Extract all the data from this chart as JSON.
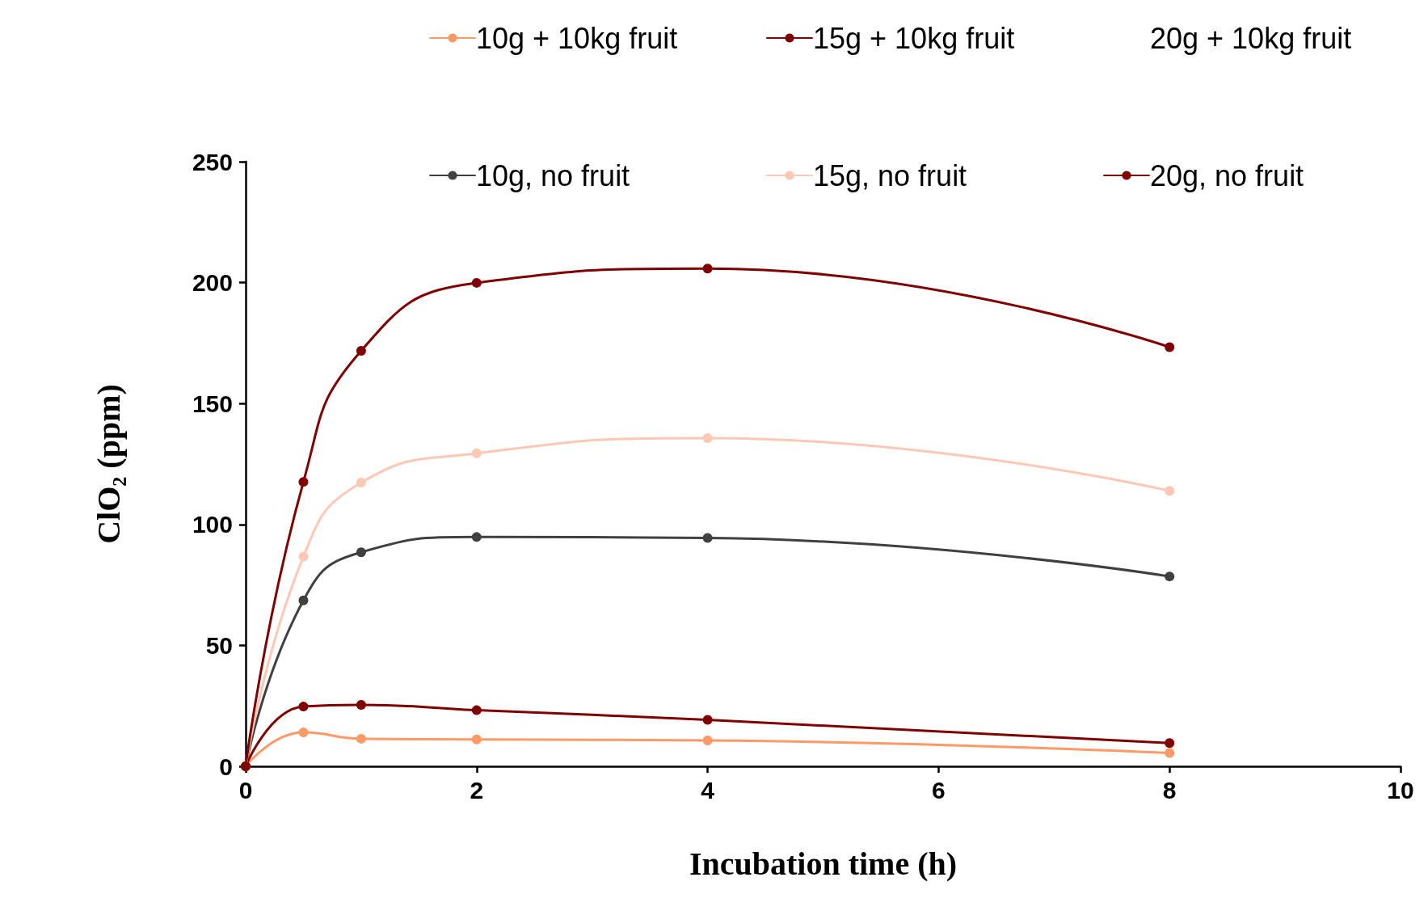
{
  "chart_data": {
    "type": "line",
    "xlabel": "Incubation time (h)",
    "ylabel": "ClO₂ (ppm)",
    "x": [
      0,
      0.5,
      1,
      2,
      4,
      8
    ],
    "series": [
      {
        "name": "10g + 10kg fruit",
        "color": "#ff9966",
        "values": [
          0,
          14,
          11.4,
          11.1,
          10.7,
          5.5
        ]
      },
      {
        "name": "15g + 10kg fruit",
        "color": "#800000",
        "values": [
          0,
          24.7,
          25.4,
          23.2,
          19.2,
          9.6
        ]
      },
      {
        "name": "20g + 10kg fruit",
        "values": [
          null,
          null,
          null,
          null,
          null,
          null
        ]
      },
      {
        "name": "10g, no fruit",
        "color": "#404040",
        "values": [
          0,
          68.6,
          88.5,
          94.8,
          94.4,
          78.5
        ]
      },
      {
        "name": "15g, no fruit",
        "color": "#ffc8b4",
        "values": [
          0,
          86.7,
          117.3,
          129.4,
          135.7,
          113.9
        ]
      },
      {
        "name": "20g, no fruit",
        "color": "#800000",
        "values": [
          0,
          117.6,
          171.8,
          199.9,
          205.8,
          173.3
        ]
      }
    ],
    "xlim": [
      0,
      10
    ],
    "xticks": [
      0,
      2,
      4,
      6,
      8,
      10
    ],
    "ylim": [
      0,
      250
    ],
    "yticks": [
      0,
      50,
      100,
      150,
      200,
      250
    ],
    "grid": false,
    "legend": "top",
    "marker": "circle",
    "line_style": "solid"
  }
}
